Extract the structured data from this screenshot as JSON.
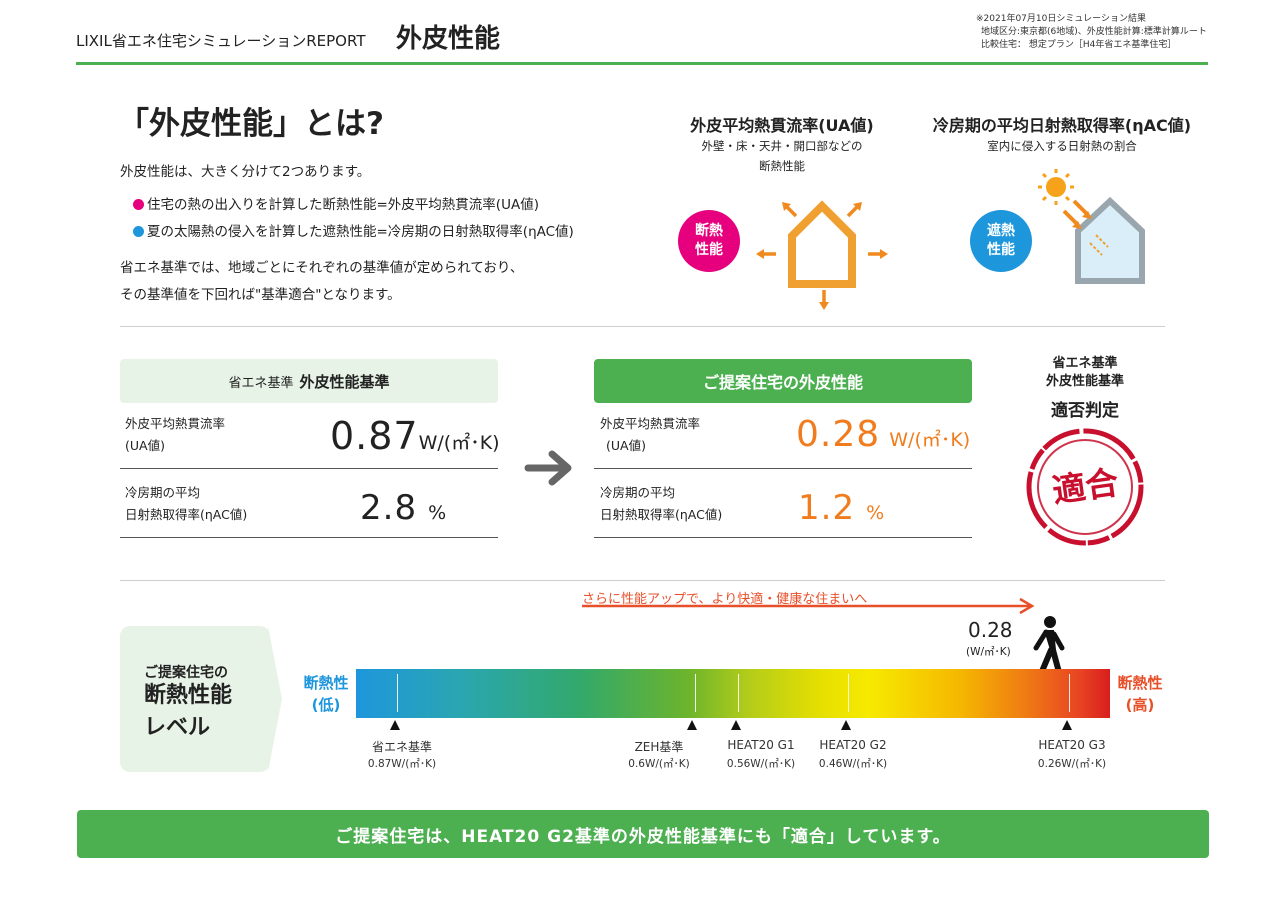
{
  "header": {
    "brand": "LIXIL省エネ住宅シミュレーションREPORT",
    "title": "外皮性能",
    "notes": [
      "※2021年07月10日シミュレーション結果",
      "地域区分:東京都(6地域)、外皮性能計算:標準計算ルート",
      "比較住宅： 想定プラン［H4年省エネ基準住宅］"
    ]
  },
  "intro": {
    "heading": "「外皮性能」とは?",
    "lead": "外皮性能は、大きく分けて2つあります。",
    "bullets": [
      "住宅の熱の出入りを計算した断熱性能=外皮平均熱貫流率(UA値)",
      "夏の太陽熱の侵入を計算した遮熱性能=冷房期の日射熱取得率(ηAC値)"
    ],
    "note_line1": "省エネ基準では、地域ごとにそれぞれの基準値が定められており、",
    "note_line2": "その基準値を下回れば\"基準適合\"となります。"
  },
  "concepts": {
    "ua": {
      "title": "外皮平均熱貫流率(UA値)",
      "desc1": "外壁・床・天井・開口部などの",
      "desc2": "断熱性能",
      "badge1": "断熱",
      "badge2": "性能"
    },
    "eta": {
      "title": "冷房期の平均日射熱取得率(ηAC値)",
      "desc1": "室内に侵入する日射熱の割合",
      "badge1": "遮熱",
      "badge2": "性能"
    }
  },
  "colors": {
    "green": "#4caf50",
    "light_green": "#e8f3e8",
    "pink": "#e6007e",
    "blue": "#1e96dc",
    "orange": "#f07c1e",
    "stamp_red": "#c8102e"
  },
  "standard": {
    "title_prefix": "省エネ基準",
    "title": "外皮性能基準",
    "ua_label1": "外皮平均熱貫流率",
    "ua_label2": "(UA値)",
    "ua_value": "0.87",
    "ua_unit": "W/(㎡･K)",
    "eta_label1": "冷房期の平均",
    "eta_label2": "日射熱取得率(ηAC値)",
    "eta_value": "2.8",
    "eta_unit": "%"
  },
  "proposal": {
    "title": "ご提案住宅の外皮性能",
    "ua_label1": "外皮平均熱貫流率",
    "ua_label2": "(UA値)",
    "ua_value": "0.28",
    "ua_unit": "W/(㎡･K)",
    "eta_label1": "冷房期の平均",
    "eta_label2": "日射熱取得率(ηAC値)",
    "eta_value": "1.2",
    "eta_unit": "%"
  },
  "judgement": {
    "line1": "省エネ基準",
    "line2": "外皮性能基準",
    "title": "適否判定",
    "stamp": "適合"
  },
  "level": {
    "box_line1": "ご提案住宅の",
    "box_line2": "断熱性能",
    "box_line3": "レベル",
    "arrow_text": "さらに性能アップで、より快適・健康な住まいへ",
    "current_value": "0.28",
    "current_unit": "(W/㎡･K)",
    "low_label1": "断熱性",
    "low_label2": "(低)",
    "high_label1": "断熱性",
    "high_label2": "(高)",
    "markers": [
      {
        "name": "省エネ基準",
        "value": "0.87W/(㎡･K)"
      },
      {
        "name": "ZEH基準",
        "value": "0.6W/(㎡･K)"
      },
      {
        "name": "HEAT20 G1",
        "value": "0.56W/(㎡･K)"
      },
      {
        "name": "HEAT20 G2",
        "value": "0.46W/(㎡･K)"
      },
      {
        "name": "HEAT20 G3",
        "value": "0.26W/(㎡･K)"
      }
    ]
  },
  "footer": {
    "message": "ご提案住宅は、HEAT20 G2基準の外皮性能基準にも「適合」しています。"
  }
}
